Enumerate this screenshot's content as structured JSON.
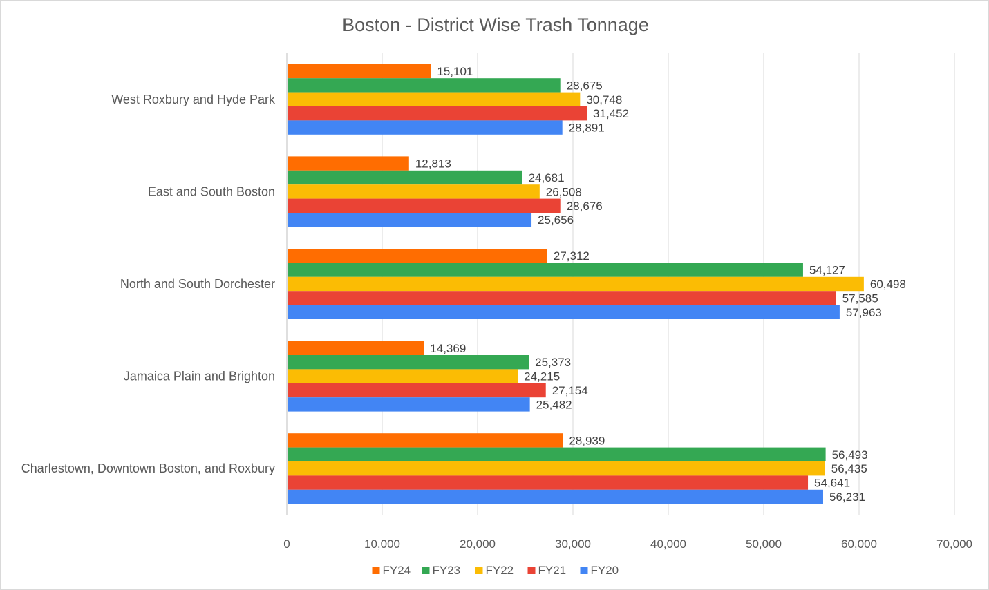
{
  "chart_data": {
    "type": "bar",
    "orientation": "horizontal",
    "title": "Boston - District Wise Trash Tonnage",
    "categories": [
      "West Roxbury and Hyde Park",
      "East and South Boston",
      "North and South Dorchester",
      "Jamaica Plain and Brighton",
      "Charlestown, Downtown Boston, and Roxbury"
    ],
    "series": [
      {
        "name": "FY24",
        "color": "#FF6D01",
        "values": [
          15101,
          12813,
          27312,
          14369,
          28939
        ]
      },
      {
        "name": "FY23",
        "color": "#34A853",
        "values": [
          28675,
          24681,
          54127,
          25373,
          56493
        ]
      },
      {
        "name": "FY22",
        "color": "#FBBC04",
        "values": [
          30748,
          26508,
          60498,
          24215,
          56435
        ]
      },
      {
        "name": "FY21",
        "color": "#EA4335",
        "values": [
          31452,
          28676,
          57585,
          27154,
          54641
        ]
      },
      {
        "name": "FY20",
        "color": "#4285F4",
        "values": [
          28891,
          25656,
          57963,
          25482,
          56231
        ]
      }
    ],
    "xlim": [
      0,
      70000
    ],
    "xticks": [
      0,
      10000,
      20000,
      30000,
      40000,
      50000,
      60000,
      70000
    ],
    "xlabel": "",
    "ylabel": "",
    "grid": "vertical",
    "legend": "bottom",
    "data_labels": true
  }
}
